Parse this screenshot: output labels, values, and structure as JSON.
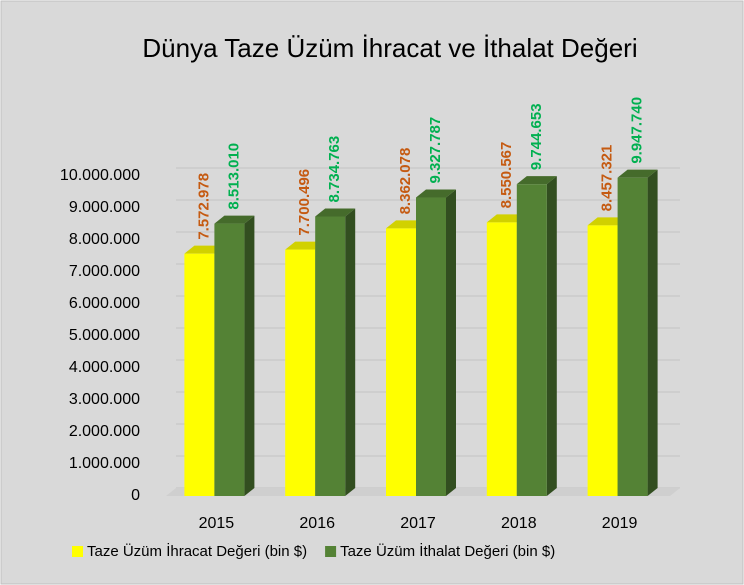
{
  "chart_data": {
    "type": "bar3d",
    "title": "Dünya Taze Üzüm İhracat ve İthalat Değeri",
    "categories": [
      "2015",
      "2016",
      "2017",
      "2018",
      "2019"
    ],
    "series": [
      {
        "name": "Taze Üzüm İhracat Değeri (bin $)",
        "color": "#ffff00",
        "label_color": "#c55a11",
        "values": [
          7572978,
          7700496,
          8362078,
          8550567,
          8457321
        ],
        "value_labels": [
          "7.572.978",
          "7.700.496",
          "8.362.078",
          "8.550.567",
          "8.457.321"
        ]
      },
      {
        "name": "Taze Üzüm İthalat Değeri (bin $)",
        "color": "#548235",
        "label_color": "#00b050",
        "values": [
          8513010,
          8734763,
          9327787,
          9744653,
          9947740
        ],
        "value_labels": [
          "8.513.010",
          "8.734.763",
          "9.327.787",
          "9.744.653",
          "9.947.740"
        ]
      }
    ],
    "ylim": [
      0,
      10000000
    ],
    "yticks": [
      0,
      {
        "value": 1000000,
        "label": "1.000.000"
      },
      {
        "value": 2000000,
        "label": "2.000.000"
      },
      {
        "value": 3000000,
        "label": "3.000.000"
      },
      {
        "value": 4000000,
        "label": "4.000.000"
      },
      {
        "value": 5000000,
        "label": "5.000.000"
      },
      {
        "value": 6000000,
        "label": "6.000.000"
      },
      {
        "value": 7000000,
        "label": "7.000.000"
      },
      {
        "value": 8000000,
        "label": "8.000.000"
      },
      {
        "value": 9000000,
        "label": "9.000.000"
      },
      {
        "value": 10000000,
        "label": "10.000.000"
      }
    ],
    "grid": true,
    "legend": "bottom"
  }
}
